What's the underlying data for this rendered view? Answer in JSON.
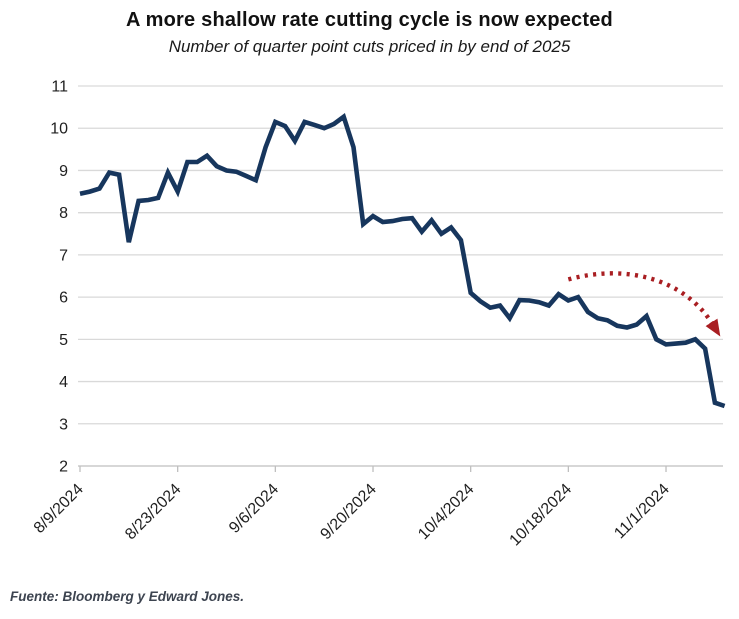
{
  "chart_data": {
    "type": "line",
    "title": "A more shallow rate cutting cycle is now expected",
    "subtitle": "Number of quarter point cuts priced in by end of 2025",
    "source_note": "Fuente: Bloomberg y Edward Jones.",
    "x": [
      "8/9",
      "8/12",
      "8/13",
      "8/14",
      "8/15",
      "8/16",
      "8/19",
      "8/20",
      "8/21",
      "8/22",
      "8/23",
      "8/26",
      "8/27",
      "8/28",
      "8/29",
      "8/30",
      "9/2",
      "9/3",
      "9/4",
      "9/5",
      "9/6",
      "9/9",
      "9/10",
      "9/11",
      "9/12",
      "9/13",
      "9/16",
      "9/17",
      "9/18",
      "9/19",
      "9/20",
      "9/23",
      "9/24",
      "9/25",
      "9/26",
      "9/27",
      "9/30",
      "10/1",
      "10/2",
      "10/3",
      "10/4",
      "10/7",
      "10/8",
      "10/9",
      "10/10",
      "10/11",
      "10/14",
      "10/15",
      "10/16",
      "10/17",
      "10/18",
      "10/21",
      "10/22",
      "10/23",
      "10/24",
      "10/25",
      "10/28",
      "10/29",
      "10/30",
      "10/31",
      "11/1",
      "11/4",
      "11/5",
      "11/6",
      "11/7",
      "11/8",
      "11/11"
    ],
    "series": [
      {
        "name": "quarter-point-cuts-priced-in",
        "color": "#17365d",
        "values": [
          8.45,
          8.5,
          8.57,
          8.95,
          8.9,
          7.3,
          8.28,
          8.3,
          8.35,
          8.95,
          8.5,
          9.2,
          9.2,
          9.35,
          9.1,
          9.0,
          8.97,
          8.87,
          8.77,
          9.55,
          10.15,
          10.05,
          9.7,
          10.15,
          10.08,
          10.0,
          10.1,
          10.27,
          9.55,
          7.73,
          7.92,
          7.78,
          7.8,
          7.85,
          7.87,
          7.55,
          7.82,
          7.5,
          7.65,
          7.35,
          6.1,
          5.9,
          5.75,
          5.8,
          5.5,
          5.93,
          5.92,
          5.88,
          5.8,
          6.07,
          5.92,
          6.0,
          5.65,
          5.5,
          5.45,
          5.32,
          5.28,
          5.35,
          5.55,
          5.0,
          4.88,
          4.9,
          4.92,
          5.0,
          4.78,
          3.5,
          3.42
        ]
      }
    ],
    "x_tick_labels": [
      "8/9/2024",
      "8/23/2024",
      "9/6/2024",
      "9/20/2024",
      "10/4/2024",
      "10/18/2024",
      "11/1/2024"
    ],
    "x_tick_indices": [
      0,
      10,
      20,
      30,
      40,
      50,
      60
    ],
    "y_ticks": [
      11,
      10,
      9,
      8,
      7,
      6,
      5,
      4,
      3,
      2
    ],
    "ylim": [
      2,
      11
    ],
    "grid": "horizontal",
    "legend": "none",
    "annotation_arrow": {
      "style": "dotted",
      "color": "#a91e22",
      "start": {
        "date": "10/18",
        "value": 6.42
      },
      "end": {
        "date": "11/8",
        "value": 5.35
      }
    }
  },
  "colors": {
    "line": "#17365d",
    "arrow": "#a91e22",
    "gridline": "#d9d9d9",
    "axis": "#bfbfbf",
    "title_text": "#111111",
    "source_text": "#3d4450"
  }
}
